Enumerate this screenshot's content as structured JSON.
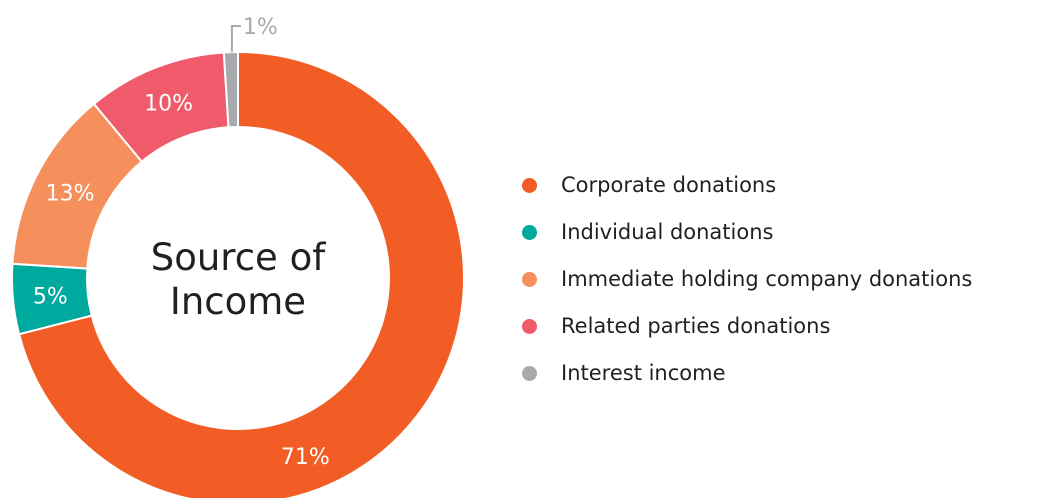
{
  "chart_data": {
    "type": "pie",
    "title_lines": [
      "Source of",
      "Income"
    ],
    "categories": [
      "Corporate donations",
      "Individual donations",
      "Immediate holding company donations",
      "Related parties donations",
      "Interest income"
    ],
    "values": [
      71,
      5,
      13,
      10,
      1
    ],
    "value_labels": [
      "71%",
      "5%",
      "13%",
      "10%",
      "1%"
    ],
    "colors": [
      "#f15d24",
      "#00a99d",
      "#f58f5b",
      "#ef5b6b",
      "#a7a9ac"
    ],
    "legend_position": "right",
    "donut": true
  }
}
